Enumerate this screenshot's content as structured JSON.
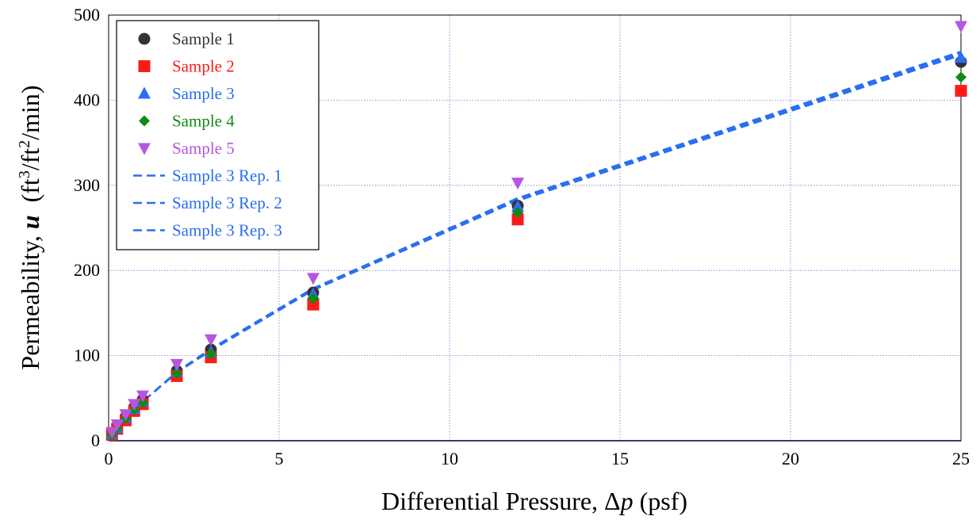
{
  "chart_data": {
    "type": "scatter",
    "xlabel_prefix": "Differential Pressure, ",
    "xlabel_delta": "Δ",
    "xlabel_var": "p",
    "xlabel_suffix": " (psf)",
    "ylabel_prefix": "Permeability, ",
    "ylabel_var": "u",
    "ylabel_unit_open": "  (ft",
    "ylabel_sup1": "3",
    "ylabel_mid": "/ft",
    "ylabel_sup2": "2",
    "ylabel_unit_close": "/min)",
    "xlim": [
      0,
      25
    ],
    "ylim": [
      0,
      500
    ],
    "xticks": [
      0,
      5,
      10,
      15,
      20,
      25
    ],
    "yticks": [
      0,
      100,
      200,
      300,
      400,
      500
    ],
    "grid": true,
    "legend_position": "top-left",
    "series": [
      {
        "name": "Sample 1",
        "kind": "marker",
        "marker": "circle",
        "color": "#333333",
        "x": [
          0.1,
          0.25,
          0.5,
          0.75,
          1,
          2,
          3,
          6,
          12,
          25
        ],
        "y": [
          9,
          17,
          28,
          39,
          48,
          82,
          107,
          174,
          276,
          445
        ]
      },
      {
        "name": "Sample 2",
        "kind": "marker",
        "marker": "square",
        "color": "#ff1a1a",
        "x": [
          0.1,
          0.25,
          0.5,
          0.75,
          1,
          2,
          3,
          6,
          12,
          25
        ],
        "y": [
          7,
          14,
          24,
          35,
          43,
          76,
          98,
          160,
          260,
          411
        ]
      },
      {
        "name": "Sample 3",
        "kind": "marker",
        "marker": "triangle-up",
        "color": "#2a6ff0",
        "x": [
          0.1,
          0.25,
          0.5,
          0.75,
          1,
          2,
          3,
          6,
          12,
          25
        ],
        "y": [
          8,
          15,
          27,
          37,
          46,
          81,
          104,
          172,
          275,
          450
        ]
      },
      {
        "name": "Sample 4",
        "kind": "marker",
        "marker": "diamond",
        "color": "#128a12",
        "x": [
          0.1,
          0.25,
          0.5,
          0.75,
          1,
          2,
          3,
          6,
          12,
          25
        ],
        "y": [
          7,
          15,
          26,
          37,
          45,
          79,
          102,
          167,
          268,
          427
        ]
      },
      {
        "name": "Sample 5",
        "kind": "marker",
        "marker": "triangle-down",
        "color": "#b755e0",
        "x": [
          0.1,
          0.25,
          0.5,
          0.75,
          1,
          2,
          3,
          6,
          12,
          25
        ],
        "y": [
          10,
          19,
          31,
          43,
          53,
          90,
          119,
          191,
          303,
          487
        ]
      },
      {
        "name": "Sample 3 Rep. 1",
        "kind": "line",
        "dash": "dashed",
        "color": "#2a6ff0",
        "x": [
          0,
          0.25,
          0.5,
          0.75,
          1,
          2,
          3,
          6,
          12,
          25
        ],
        "y": [
          0,
          15,
          27,
          37,
          46,
          80,
          107,
          178,
          284,
          455
        ]
      },
      {
        "name": "Sample 3 Rep. 2",
        "kind": "line",
        "dash": "dashed",
        "color": "#2a6ff0",
        "x": [
          0,
          0.25,
          0.5,
          0.75,
          1,
          2,
          3,
          6,
          12,
          25
        ],
        "y": [
          0,
          15,
          27,
          37,
          46,
          80,
          106,
          177,
          282,
          453
        ]
      },
      {
        "name": "Sample 3 Rep. 3",
        "kind": "line",
        "dash": "dashed",
        "color": "#2a6ff0",
        "x": [
          0,
          0.25,
          0.5,
          0.75,
          1,
          2,
          3,
          6,
          12,
          25
        ],
        "y": [
          0,
          15,
          27,
          37,
          46,
          81,
          108,
          179,
          285,
          457
        ]
      }
    ]
  }
}
